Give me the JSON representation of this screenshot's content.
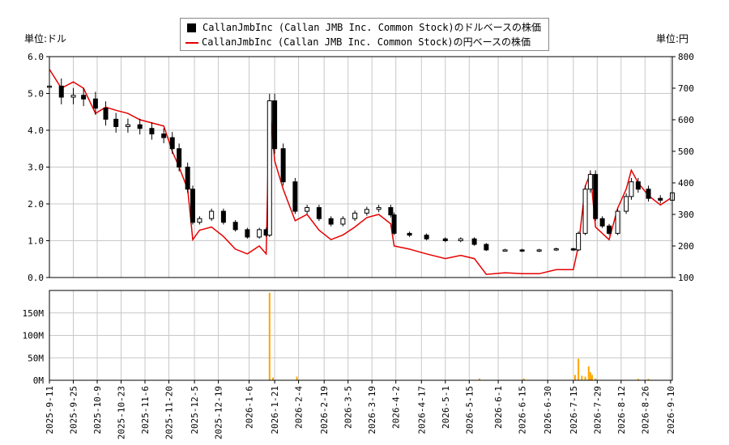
{
  "legend": {
    "series_dollar": "CallanJmbInc (Callan JMB Inc. Common Stock)のドルベースの株価",
    "series_yen": "CallanJmbInc (Callan JMB Inc. Common Stock)の円ベースの株価"
  },
  "units": {
    "left": "単位:ドル",
    "right": "単位:円"
  },
  "colors": {
    "candle": "#000000",
    "yen_line": "#e60000",
    "volume": "#ffa500",
    "grid": "#c8c8c8"
  },
  "chart_data": [
    {
      "type": "line",
      "title": "",
      "y_axis_left": {
        "label": "単位:ドル",
        "ylim": [
          0,
          6
        ],
        "ticks": [
          "0.0",
          "1.0",
          "2.0",
          "3.0",
          "4.0",
          "5.0",
          "6.0"
        ]
      },
      "y_axis_right": {
        "label": "単位:円",
        "ylim": [
          100,
          800
        ],
        "ticks": [
          "100",
          "200",
          "300",
          "400",
          "500",
          "600",
          "700",
          "800"
        ]
      },
      "xlim": [
        "2025-09-11",
        "2026-09-11"
      ],
      "grid": true,
      "legend_position": "top-center",
      "series": [
        {
          "name": "CallanJmbInc (Callan JMB Inc. Common Stock)のドルベースの株価",
          "style": "candlestick",
          "axis": "left",
          "points": [
            [
              "2025-09-11",
              5.2
            ],
            [
              "2025-09-18",
              4.9
            ],
            [
              "2025-09-25",
              4.95
            ],
            [
              "2025-10-01",
              4.85
            ],
            [
              "2025-10-08",
              4.6
            ],
            [
              "2025-10-14",
              4.3
            ],
            [
              "2025-10-20",
              4.1
            ],
            [
              "2025-10-27",
              4.15
            ],
            [
              "2025-11-03",
              4.05
            ],
            [
              "2025-11-10",
              3.9
            ],
            [
              "2025-11-17",
              3.8
            ],
            [
              "2025-11-22",
              3.5
            ],
            [
              "2025-11-26",
              3.0
            ],
            [
              "2025-12-01",
              2.4
            ],
            [
              "2025-12-04",
              1.5
            ],
            [
              "2025-12-08",
              1.6
            ],
            [
              "2025-12-15",
              1.8
            ],
            [
              "2025-12-22",
              1.5
            ],
            [
              "2025-12-29",
              1.3
            ],
            [
              "2026-01-05",
              1.1
            ],
            [
              "2026-01-12",
              1.3
            ],
            [
              "2026-01-16",
              1.15
            ],
            [
              "2026-01-18",
              4.8
            ],
            [
              "2026-01-21",
              3.5
            ],
            [
              "2026-01-26",
              2.6
            ],
            [
              "2026-02-02",
              1.8
            ],
            [
              "2026-02-09",
              1.9
            ],
            [
              "2026-02-16",
              1.6
            ],
            [
              "2026-02-23",
              1.45
            ],
            [
              "2026-03-02",
              1.6
            ],
            [
              "2026-03-09",
              1.75
            ],
            [
              "2026-03-16",
              1.85
            ],
            [
              "2026-03-23",
              1.9
            ],
            [
              "2026-03-30",
              1.7
            ],
            [
              "2026-04-01",
              1.2
            ],
            [
              "2026-04-10",
              1.15
            ],
            [
              "2026-04-20",
              1.05
            ],
            [
              "2026-05-01",
              1.0
            ],
            [
              "2026-05-10",
              1.05
            ],
            [
              "2026-05-18",
              0.9
            ],
            [
              "2026-05-25",
              0.75
            ],
            [
              "2026-06-05",
              0.75
            ],
            [
              "2026-06-15",
              0.72
            ],
            [
              "2026-06-25",
              0.75
            ],
            [
              "2026-07-05",
              0.78
            ],
            [
              "2026-07-15",
              0.75
            ],
            [
              "2026-07-18",
              1.2
            ],
            [
              "2026-07-22",
              2.4
            ],
            [
              "2026-07-25",
              2.8
            ],
            [
              "2026-07-28",
              1.6
            ],
            [
              "2026-08-01",
              1.4
            ],
            [
              "2026-08-05",
              1.2
            ],
            [
              "2026-08-10",
              1.8
            ],
            [
              "2026-08-15",
              2.2
            ],
            [
              "2026-08-18",
              2.6
            ],
            [
              "2026-08-22",
              2.4
            ],
            [
              "2026-08-28",
              2.15
            ],
            [
              "2026-09-04",
              2.1
            ],
            [
              "2026-09-11",
              2.3
            ]
          ]
        },
        {
          "name": "CallanJmbInc (Callan JMB Inc. Common Stock)の円ベースの株価",
          "style": "line",
          "axis": "right",
          "points": [
            [
              "2025-09-11",
              760
            ],
            [
              "2025-09-18",
              700
            ],
            [
              "2025-09-25",
              720
            ],
            [
              "2025-10-01",
              700
            ],
            [
              "2025-10-08",
              620
            ],
            [
              "2025-10-14",
              640
            ],
            [
              "2025-10-20",
              630
            ],
            [
              "2025-10-27",
              620
            ],
            [
              "2025-11-03",
              600
            ],
            [
              "2025-11-10",
              590
            ],
            [
              "2025-11-17",
              580
            ],
            [
              "2025-11-22",
              500
            ],
            [
              "2025-11-26",
              450
            ],
            [
              "2025-12-01",
              380
            ],
            [
              "2025-12-04",
              220
            ],
            [
              "2025-12-08",
              250
            ],
            [
              "2025-12-15",
              260
            ],
            [
              "2025-12-22",
              230
            ],
            [
              "2025-12-29",
              190
            ],
            [
              "2026-01-05",
              175
            ],
            [
              "2026-01-12",
              200
            ],
            [
              "2026-01-16",
              175
            ],
            [
              "2026-01-18",
              660
            ],
            [
              "2026-01-21",
              470
            ],
            [
              "2026-01-26",
              380
            ],
            [
              "2026-02-02",
              280
            ],
            [
              "2026-02-09",
              300
            ],
            [
              "2026-02-16",
              250
            ],
            [
              "2026-02-23",
              220
            ],
            [
              "2026-03-02",
              235
            ],
            [
              "2026-03-09",
              260
            ],
            [
              "2026-03-16",
              290
            ],
            [
              "2026-03-23",
              300
            ],
            [
              "2026-03-30",
              270
            ],
            [
              "2026-04-01",
              200
            ],
            [
              "2026-04-10",
              190
            ],
            [
              "2026-04-20",
              175
            ],
            [
              "2026-05-01",
              160
            ],
            [
              "2026-05-10",
              170
            ],
            [
              "2026-05-18",
              160
            ],
            [
              "2026-05-25",
              110
            ],
            [
              "2026-06-05",
              115
            ],
            [
              "2026-06-15",
              112
            ],
            [
              "2026-06-25",
              112
            ],
            [
              "2026-07-05",
              125
            ],
            [
              "2026-07-15",
              125
            ],
            [
              "2026-07-18",
              200
            ],
            [
              "2026-07-22",
              390
            ],
            [
              "2026-07-25",
              430
            ],
            [
              "2026-07-28",
              260
            ],
            [
              "2026-08-01",
              240
            ],
            [
              "2026-08-05",
              220
            ],
            [
              "2026-08-10",
              320
            ],
            [
              "2026-08-15",
              380
            ],
            [
              "2026-08-18",
              440
            ],
            [
              "2026-08-22",
              400
            ],
            [
              "2026-08-28",
              360
            ],
            [
              "2026-09-04",
              330
            ],
            [
              "2026-09-11",
              355
            ]
          ]
        }
      ]
    },
    {
      "type": "bar",
      "title": "",
      "ylim": [
        0,
        200000000
      ],
      "y_ticks": [
        "0M",
        "50M",
        "100M",
        "150M"
      ],
      "x_ticks": [
        "2025-9-11",
        "2025-9-25",
        "2025-10-9",
        "2025-10-23",
        "2025-11-6",
        "2025-11-20",
        "2025-12-5",
        "2025-12-19",
        "2026-1-6",
        "2026-1-21",
        "2026-2-4",
        "2026-2-19",
        "2026-3-5",
        "2026-3-19",
        "2026-4-2",
        "2026-4-17",
        "2026-5-1",
        "2026-5-15",
        "2026-6-1",
        "2026-6-15",
        "2026-6-30",
        "2026-7-15",
        "2026-7-29",
        "2026-8-12",
        "2026-8-26",
        "2026-9-10"
      ],
      "grid": true,
      "series": [
        {
          "points": [
            [
              "2026-01-18",
              195000000
            ],
            [
              "2026-01-20",
              6000000
            ],
            [
              "2026-02-03",
              8000000
            ],
            [
              "2026-05-21",
              4000000
            ],
            [
              "2026-06-16",
              4000000
            ],
            [
              "2026-07-16",
              12000000
            ],
            [
              "2026-07-18",
              48000000
            ],
            [
              "2026-07-20",
              10000000
            ],
            [
              "2026-07-22",
              8000000
            ],
            [
              "2026-07-24",
              31000000
            ],
            [
              "2026-07-25",
              18000000
            ],
            [
              "2026-07-26",
              12000000
            ],
            [
              "2026-07-28",
              4000000
            ],
            [
              "2026-08-22",
              3000000
            ],
            [
              "2026-08-28",
              3000000
            ]
          ]
        }
      ]
    }
  ]
}
